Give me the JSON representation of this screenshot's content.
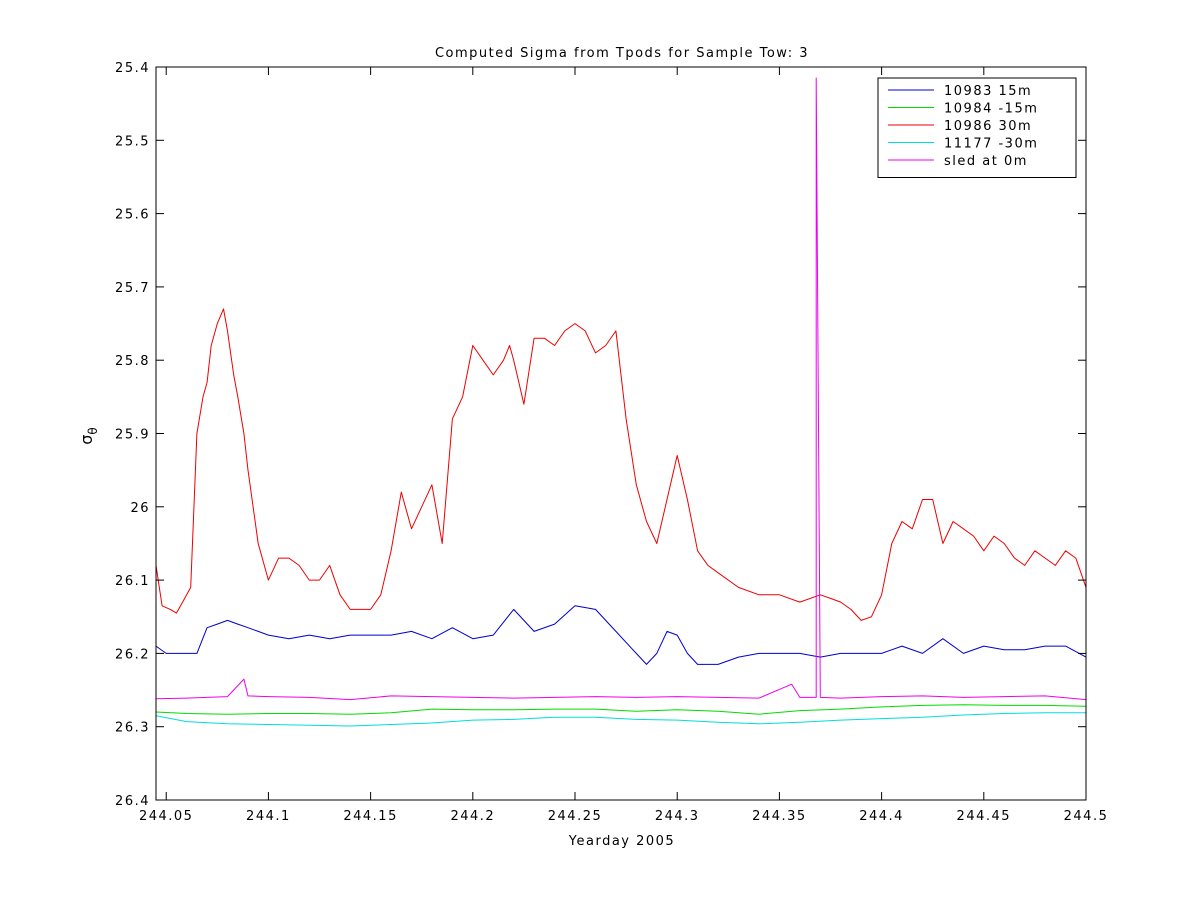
{
  "chart_data": {
    "type": "line",
    "title": "Computed Sigma from Tpods for Sample Tow: 3",
    "xlabel": "Yearday 2005",
    "ylabel_main": "σ",
    "ylabel_sub": "θ",
    "xlim": [
      244.045,
      244.5
    ],
    "ylim": [
      25.4,
      26.4
    ],
    "y_reversed": true,
    "grid": false,
    "legend_position": "top-right",
    "x_ticks": [
      {
        "value": 244.05,
        "label": "244.05"
      },
      {
        "value": 244.1,
        "label": "244.1"
      },
      {
        "value": 244.15,
        "label": "244.15"
      },
      {
        "value": 244.2,
        "label": "244.2"
      },
      {
        "value": 244.25,
        "label": "244.25"
      },
      {
        "value": 244.3,
        "label": "244.3"
      },
      {
        "value": 244.35,
        "label": "244.35"
      },
      {
        "value": 244.4,
        "label": "244.4"
      },
      {
        "value": 244.45,
        "label": "244.45"
      },
      {
        "value": 244.5,
        "label": "244.5"
      }
    ],
    "y_ticks": [
      {
        "value": 25.4,
        "label": "25.4"
      },
      {
        "value": 25.5,
        "label": "25.5"
      },
      {
        "value": 25.6,
        "label": "25.6"
      },
      {
        "value": 25.7,
        "label": "25.7"
      },
      {
        "value": 25.8,
        "label": "25.8"
      },
      {
        "value": 25.9,
        "label": "25.9"
      },
      {
        "value": 26.0,
        "label": "26"
      },
      {
        "value": 26.1,
        "label": "26.1"
      },
      {
        "value": 26.2,
        "label": "26.2"
      },
      {
        "value": 26.3,
        "label": "26.3"
      },
      {
        "value": 26.4,
        "label": "26.4"
      }
    ],
    "series": [
      {
        "name": "10983 15m",
        "color": "#0000cc",
        "x": [
          244.045,
          244.05,
          244.055,
          244.06,
          244.065,
          244.07,
          244.075,
          244.08,
          244.085,
          244.09,
          244.095,
          244.1,
          244.11,
          244.12,
          244.13,
          244.14,
          244.15,
          244.16,
          244.17,
          244.18,
          244.19,
          244.2,
          244.21,
          244.22,
          244.23,
          244.24,
          244.25,
          244.26,
          244.27,
          244.28,
          244.285,
          244.29,
          244.295,
          244.3,
          244.305,
          244.31,
          244.32,
          244.33,
          244.34,
          244.35,
          244.36,
          244.37,
          244.38,
          244.39,
          244.4,
          244.41,
          244.42,
          244.43,
          244.44,
          244.45,
          244.46,
          244.47,
          244.48,
          244.49,
          244.5
        ],
        "y": [
          26.19,
          26.2,
          26.2,
          26.2,
          26.2,
          26.165,
          26.16,
          26.155,
          26.16,
          26.165,
          26.17,
          26.175,
          26.18,
          26.175,
          26.18,
          26.175,
          26.175,
          26.175,
          26.17,
          26.18,
          26.165,
          26.18,
          26.175,
          26.14,
          26.17,
          26.16,
          26.135,
          26.14,
          26.17,
          26.2,
          26.215,
          26.2,
          26.17,
          26.175,
          26.2,
          26.215,
          26.215,
          26.205,
          26.2,
          26.2,
          26.2,
          26.205,
          26.2,
          26.2,
          26.2,
          26.19,
          26.2,
          26.18,
          26.2,
          26.19,
          26.195,
          26.195,
          26.19,
          26.19,
          26.205
        ]
      },
      {
        "name": "10984 -15m",
        "color": "#00dd00",
        "x": [
          244.045,
          244.06,
          244.08,
          244.1,
          244.12,
          244.14,
          244.16,
          244.18,
          244.2,
          244.22,
          244.24,
          244.26,
          244.28,
          244.3,
          244.32,
          244.34,
          244.36,
          244.38,
          244.4,
          244.42,
          244.44,
          244.46,
          244.48,
          244.5
        ],
        "y": [
          26.28,
          26.282,
          26.283,
          26.282,
          26.282,
          26.283,
          26.281,
          26.276,
          26.277,
          26.277,
          26.276,
          26.276,
          26.279,
          26.277,
          26.279,
          26.283,
          26.278,
          26.276,
          26.273,
          26.271,
          26.27,
          26.271,
          26.271,
          26.272
        ]
      },
      {
        "name": "10986 30m",
        "color": "#ee0000",
        "x": [
          244.045,
          244.048,
          244.052,
          244.055,
          244.058,
          244.062,
          244.065,
          244.068,
          244.07,
          244.072,
          244.075,
          244.078,
          244.08,
          244.083,
          244.085,
          244.088,
          244.09,
          244.095,
          244.1,
          244.105,
          244.11,
          244.115,
          244.12,
          244.125,
          244.13,
          244.135,
          244.14,
          244.145,
          244.15,
          244.155,
          244.16,
          244.165,
          244.17,
          244.175,
          244.18,
          244.185,
          244.19,
          244.195,
          244.2,
          244.205,
          244.21,
          244.215,
          244.218,
          244.22,
          244.225,
          244.23,
          244.235,
          244.24,
          244.245,
          244.25,
          244.255,
          244.26,
          244.265,
          244.27,
          244.275,
          244.28,
          244.285,
          244.29,
          244.295,
          244.3,
          244.305,
          244.31,
          244.315,
          244.32,
          244.33,
          244.34,
          244.35,
          244.36,
          244.37,
          244.375,
          244.38,
          244.385,
          244.39,
          244.395,
          244.4,
          244.405,
          244.41,
          244.415,
          244.42,
          244.425,
          244.43,
          244.435,
          244.44,
          244.445,
          244.45,
          244.455,
          244.46,
          244.465,
          244.47,
          244.475,
          244.48,
          244.485,
          244.49,
          244.495,
          244.5
        ],
        "y": [
          26.08,
          26.135,
          26.14,
          26.145,
          26.13,
          26.11,
          25.9,
          25.85,
          25.83,
          25.78,
          25.75,
          25.73,
          25.76,
          25.82,
          25.85,
          25.9,
          25.95,
          26.05,
          26.1,
          26.07,
          26.07,
          26.08,
          26.1,
          26.1,
          26.08,
          26.12,
          26.14,
          26.14,
          26.14,
          26.12,
          26.06,
          25.98,
          26.03,
          26.0,
          25.97,
          26.05,
          25.88,
          25.85,
          25.78,
          25.8,
          25.82,
          25.8,
          25.78,
          25.8,
          25.86,
          25.77,
          25.77,
          25.78,
          25.76,
          25.75,
          25.76,
          25.79,
          25.78,
          25.76,
          25.88,
          25.97,
          26.02,
          26.05,
          25.99,
          25.93,
          25.99,
          26.06,
          26.08,
          26.09,
          26.11,
          26.12,
          26.12,
          26.13,
          26.12,
          26.125,
          26.13,
          26.14,
          26.155,
          26.15,
          26.12,
          26.05,
          26.02,
          26.03,
          25.99,
          25.99,
          26.05,
          26.02,
          26.03,
          26.04,
          26.06,
          26.04,
          26.05,
          26.07,
          26.08,
          26.06,
          26.07,
          26.08,
          26.06,
          26.07,
          26.11
        ]
      },
      {
        "name": "11177 -30m",
        "color": "#00dddd",
        "x": [
          244.045,
          244.06,
          244.08,
          244.1,
          244.12,
          244.14,
          244.16,
          244.18,
          244.2,
          244.22,
          244.24,
          244.26,
          244.28,
          244.3,
          244.32,
          244.34,
          244.36,
          244.38,
          244.4,
          244.42,
          244.44,
          244.46,
          244.48,
          244.5
        ],
        "y": [
          26.285,
          26.293,
          26.296,
          26.297,
          26.298,
          26.299,
          26.297,
          26.295,
          26.291,
          26.29,
          26.287,
          26.287,
          26.29,
          26.291,
          26.294,
          26.296,
          26.294,
          26.291,
          26.289,
          26.287,
          26.284,
          26.282,
          26.281,
          26.281
        ]
      },
      {
        "name": "sled at 0m",
        "color": "#ee00ee",
        "x": [
          244.045,
          244.06,
          244.08,
          244.088,
          244.09,
          244.1,
          244.12,
          244.14,
          244.16,
          244.18,
          244.2,
          244.22,
          244.24,
          244.26,
          244.28,
          244.3,
          244.32,
          244.34,
          244.356,
          244.36,
          244.368,
          244.368,
          244.37,
          244.38,
          244.4,
          244.42,
          244.44,
          244.46,
          244.48,
          244.5
        ],
        "y": [
          26.262,
          26.261,
          26.259,
          26.235,
          26.258,
          26.259,
          26.26,
          26.263,
          26.258,
          26.259,
          26.26,
          26.261,
          26.26,
          26.259,
          26.26,
          26.259,
          26.26,
          26.261,
          26.242,
          26.26,
          26.26,
          25.415,
          26.26,
          26.261,
          26.259,
          26.258,
          26.26,
          26.259,
          26.258,
          26.263
        ]
      }
    ]
  }
}
